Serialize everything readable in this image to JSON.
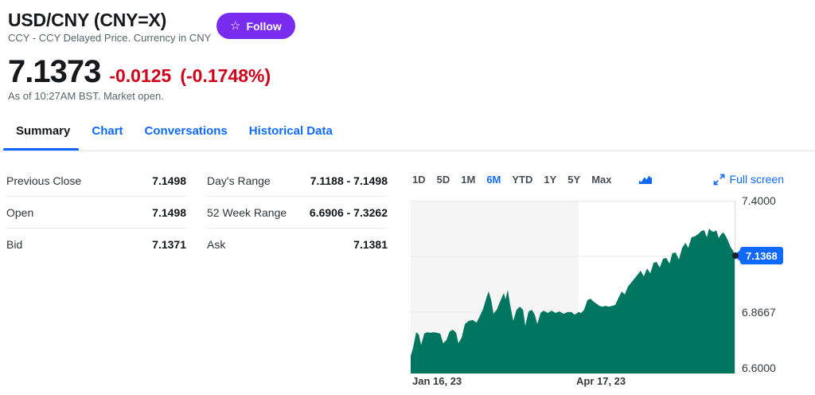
{
  "header": {
    "title": "USD/CNY (CNY=X)",
    "subtitle": "CCY - CCY Delayed Price. Currency in CNY",
    "follow_label": "Follow",
    "star_icon": "☆",
    "follow_color": "#7a2bf0"
  },
  "quote": {
    "price": "7.1373",
    "change": "-0.0125",
    "change_pct": "(-0.1748%)",
    "change_color": "#d0021b",
    "as_of": "As of 10:27AM BST. Market open."
  },
  "tabs": [
    {
      "label": "Summary",
      "active": true
    },
    {
      "label": "Chart",
      "active": false
    },
    {
      "label": "Conversations",
      "active": false
    },
    {
      "label": "Historical Data",
      "active": false
    }
  ],
  "stats": {
    "left": [
      {
        "label": "Previous Close",
        "value": "7.1498"
      },
      {
        "label": "Open",
        "value": "7.1498"
      },
      {
        "label": "Bid",
        "value": "7.1371"
      }
    ],
    "right": [
      {
        "label": "Day's Range",
        "value": "7.1188 - 7.1498"
      },
      {
        "label": "52 Week Range",
        "value": "6.6906 - 7.3262"
      },
      {
        "label": "Ask",
        "value": "7.1381"
      }
    ]
  },
  "chart_controls": {
    "ranges": [
      "1D",
      "5D",
      "1M",
      "6M",
      "YTD",
      "1Y",
      "5Y",
      "Max"
    ],
    "active_range": "6M",
    "fullscreen_label": "Full screen"
  },
  "chart_data": {
    "type": "area",
    "title": "USD/CNY 6M price chart",
    "fill_color": "#00755f",
    "shaded_bg_color": "#f5f5f6",
    "gridline_color": "#e9eaec",
    "axis_line_color": "#d7dbdf",
    "badge_color": "#0f69ff",
    "shaded_region_fraction": 0.517,
    "last_price": 7.1368,
    "last_price_label": "7.1368",
    "x_axis": {
      "ticks": [
        "Jan 16, 23",
        "Apr 17, 23"
      ],
      "tick_positions": [
        0.005,
        0.51
      ]
    },
    "y_axis": {
      "ylim": [
        6.6,
        7.4
      ],
      "ticks": [
        {
          "label": "7.4000",
          "value": 7.4
        },
        {
          "label": "6.8667",
          "value": 6.8667
        },
        {
          "label": "6.6000",
          "value": 6.6
        }
      ],
      "gridline_values": [
        7.4,
        7.1333,
        6.8667,
        6.6
      ]
    },
    "points": [
      [
        0.0,
        6.657
      ],
      [
        0.007,
        6.695
      ],
      [
        0.017,
        6.771
      ],
      [
        0.025,
        6.76
      ],
      [
        0.032,
        6.71
      ],
      [
        0.042,
        6.764
      ],
      [
        0.051,
        6.771
      ],
      [
        0.061,
        6.768
      ],
      [
        0.071,
        6.771
      ],
      [
        0.081,
        6.768
      ],
      [
        0.091,
        6.764
      ],
      [
        0.1,
        6.718
      ],
      [
        0.11,
        6.733
      ],
      [
        0.12,
        6.775
      ],
      [
        0.13,
        6.783
      ],
      [
        0.14,
        6.768
      ],
      [
        0.147,
        6.718
      ],
      [
        0.157,
        6.745
      ],
      [
        0.167,
        6.81
      ],
      [
        0.179,
        6.825
      ],
      [
        0.191,
        6.829
      ],
      [
        0.203,
        6.817
      ],
      [
        0.213,
        6.848
      ],
      [
        0.223,
        6.882
      ],
      [
        0.233,
        6.935
      ],
      [
        0.24,
        6.966
      ],
      [
        0.248,
        6.924
      ],
      [
        0.255,
        6.859
      ],
      [
        0.265,
        6.878
      ],
      [
        0.272,
        6.905
      ],
      [
        0.279,
        6.931
      ],
      [
        0.287,
        6.958
      ],
      [
        0.292,
        6.928
      ],
      [
        0.299,
        6.973
      ],
      [
        0.306,
        6.905
      ],
      [
        0.316,
        6.825
      ],
      [
        0.326,
        6.878
      ],
      [
        0.336,
        6.893
      ],
      [
        0.346,
        6.878
      ],
      [
        0.353,
        6.802
      ],
      [
        0.363,
        6.87
      ],
      [
        0.373,
        6.878
      ],
      [
        0.382,
        6.855
      ],
      [
        0.39,
        6.81
      ],
      [
        0.4,
        6.863
      ],
      [
        0.409,
        6.874
      ],
      [
        0.422,
        6.863
      ],
      [
        0.434,
        6.874
      ],
      [
        0.446,
        6.863
      ],
      [
        0.458,
        6.87
      ],
      [
        0.471,
        6.859
      ],
      [
        0.483,
        6.867
      ],
      [
        0.495,
        6.867
      ],
      [
        0.505,
        6.855
      ],
      [
        0.517,
        6.867
      ],
      [
        0.525,
        6.863
      ],
      [
        0.534,
        6.878
      ],
      [
        0.544,
        6.924
      ],
      [
        0.554,
        6.931
      ],
      [
        0.564,
        6.916
      ],
      [
        0.574,
        6.905
      ],
      [
        0.581,
        6.897
      ],
      [
        0.591,
        6.893
      ],
      [
        0.6,
        6.897
      ],
      [
        0.61,
        6.893
      ],
      [
        0.62,
        6.897
      ],
      [
        0.63,
        6.901
      ],
      [
        0.64,
        6.935
      ],
      [
        0.65,
        6.966
      ],
      [
        0.659,
        6.951
      ],
      [
        0.669,
        6.989
      ],
      [
        0.679,
        7.008
      ],
      [
        0.689,
        7.027
      ],
      [
        0.699,
        7.046
      ],
      [
        0.708,
        7.065
      ],
      [
        0.718,
        7.038
      ],
      [
        0.728,
        7.076
      ],
      [
        0.738,
        7.053
      ],
      [
        0.748,
        7.103
      ],
      [
        0.757,
        7.107
      ],
      [
        0.767,
        7.08
      ],
      [
        0.777,
        7.122
      ],
      [
        0.787,
        7.126
      ],
      [
        0.797,
        7.099
      ],
      [
        0.806,
        7.149
      ],
      [
        0.816,
        7.152
      ],
      [
        0.826,
        7.118
      ],
      [
        0.836,
        7.175
      ],
      [
        0.846,
        7.198
      ],
      [
        0.855,
        7.175
      ],
      [
        0.865,
        7.225
      ],
      [
        0.875,
        7.229
      ],
      [
        0.885,
        7.24
      ],
      [
        0.895,
        7.255
      ],
      [
        0.904,
        7.259
      ],
      [
        0.912,
        7.225
      ],
      [
        0.919,
        7.267
      ],
      [
        0.926,
        7.255
      ],
      [
        0.934,
        7.251
      ],
      [
        0.941,
        7.259
      ],
      [
        0.949,
        7.221
      ],
      [
        0.956,
        7.24
      ],
      [
        0.963,
        7.248
      ],
      [
        0.971,
        7.229
      ],
      [
        0.978,
        7.206
      ],
      [
        0.985,
        7.179
      ],
      [
        0.993,
        7.16
      ],
      [
        1.0,
        7.1368
      ]
    ]
  }
}
